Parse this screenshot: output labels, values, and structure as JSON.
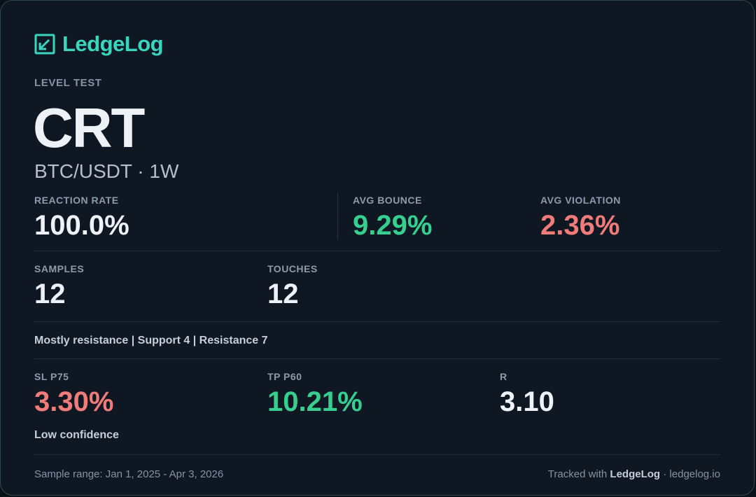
{
  "brand": {
    "name": "LedgeLog",
    "icon": "ledgelog-logo-icon",
    "accent_color": "#38d6be"
  },
  "header": {
    "eyebrow": "LEVEL TEST",
    "title": "CRT",
    "subtitle": "BTC/USDT · 1W"
  },
  "metrics_row1": {
    "reaction_rate": {
      "label": "REACTION RATE",
      "value": "100.0%"
    },
    "avg_bounce": {
      "label": "AVG BOUNCE",
      "value": "9.29%",
      "color": "#35d08f"
    },
    "avg_violation": {
      "label": "AVG VIOLATION",
      "value": "2.36%",
      "color": "#ef7c78"
    }
  },
  "metrics_row2": {
    "samples": {
      "label": "SAMPLES",
      "value": "12"
    },
    "touches": {
      "label": "TOUCHES",
      "value": "12"
    }
  },
  "bias_note": "Mostly resistance | Support 4 | Resistance 7",
  "metrics_row3": {
    "sl": {
      "label": "SL P75",
      "value": "3.30%",
      "color": "#ef7c78"
    },
    "tp": {
      "label": "TP P60",
      "value": "10.21%",
      "color": "#35d08f"
    },
    "r": {
      "label": "R",
      "value": "3.10"
    }
  },
  "confidence_note": "Low confidence",
  "footer": {
    "sample_range": "Sample range: Jan 1, 2025 - Apr 3, 2026",
    "tracked_prefix": "Tracked with ",
    "tracked_brand": "LedgeLog",
    "tracked_suffix": " · ledgelog.io"
  }
}
